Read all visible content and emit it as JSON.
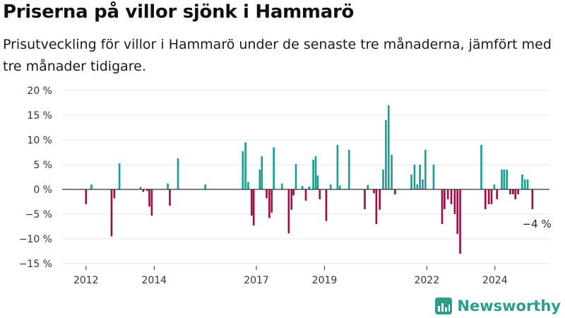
{
  "header": {
    "title": "Priserna på villor sjönk i Hammarö",
    "subtitle": "Prisutveckling för villor i Hammarö under de senaste tre månaderna, jämfört med tre månader tidigare."
  },
  "brand": {
    "name": "Newsworthy",
    "icon": "bar-chart-logo-icon",
    "color": "#2a9d8f"
  },
  "colors": {
    "positive": "#1a9e96",
    "negative": "#9b0f47"
  },
  "chart_data": {
    "type": "bar",
    "title": "Priserna på villor sjönk i Hammarö",
    "ylabel": "",
    "xlabel": "",
    "ylim": [
      -15,
      20
    ],
    "yticks": [
      20,
      15,
      10,
      5,
      0,
      -5,
      -10,
      -15
    ],
    "ytick_labels": [
      "20 %",
      "15 %",
      "10 %",
      "5 %",
      "0 %",
      "−5 %",
      "−10 %",
      "−15 %"
    ],
    "xlim": [
      2011.3,
      2025.6
    ],
    "xticks": [
      2012,
      2014,
      2017,
      2019,
      2022,
      2024
    ],
    "xtick_labels": [
      "2012",
      "2014",
      "2017",
      "2019",
      "2022",
      "2024"
    ],
    "grid": true,
    "bar_width_years": 0.055,
    "annotation": {
      "text": "−4 %",
      "x": 2024.7,
      "y": -4
    },
    "points": [
      {
        "x": 2012.0,
        "v": -3
      },
      {
        "x": 2012.16,
        "v": 1
      },
      {
        "x": 2012.75,
        "v": -9.5
      },
      {
        "x": 2012.83,
        "v": -1.8
      },
      {
        "x": 2012.98,
        "v": 5.3
      },
      {
        "x": 2013.6,
        "v": 0.5
      },
      {
        "x": 2013.68,
        "v": -0.5
      },
      {
        "x": 2013.8,
        "v": -0.3
      },
      {
        "x": 2013.86,
        "v": -3.5
      },
      {
        "x": 2013.93,
        "v": -5.3
      },
      {
        "x": 2014.4,
        "v": 1.2
      },
      {
        "x": 2014.46,
        "v": -3.3
      },
      {
        "x": 2014.7,
        "v": 6.3
      },
      {
        "x": 2015.5,
        "v": 1
      },
      {
        "x": 2016.6,
        "v": 7.7
      },
      {
        "x": 2016.68,
        "v": 9.5
      },
      {
        "x": 2016.76,
        "v": 1.5
      },
      {
        "x": 2016.86,
        "v": -5.3
      },
      {
        "x": 2016.92,
        "v": -7.3
      },
      {
        "x": 2017.1,
        "v": 4
      },
      {
        "x": 2017.16,
        "v": 6.7
      },
      {
        "x": 2017.3,
        "v": -1.8
      },
      {
        "x": 2017.38,
        "v": -5.8
      },
      {
        "x": 2017.45,
        "v": -4.7
      },
      {
        "x": 2017.51,
        "v": 8.5
      },
      {
        "x": 2017.75,
        "v": 1.2
      },
      {
        "x": 2017.95,
        "v": -8.9
      },
      {
        "x": 2018.03,
        "v": -4.1
      },
      {
        "x": 2018.09,
        "v": -1.2
      },
      {
        "x": 2018.16,
        "v": 5.1
      },
      {
        "x": 2018.35,
        "v": 0.7
      },
      {
        "x": 2018.45,
        "v": -2.3
      },
      {
        "x": 2018.55,
        "v": 0.6
      },
      {
        "x": 2018.67,
        "v": 6
      },
      {
        "x": 2018.74,
        "v": 6.7
      },
      {
        "x": 2018.8,
        "v": 2.8
      },
      {
        "x": 2018.86,
        "v": -2
      },
      {
        "x": 2019.05,
        "v": -6.4
      },
      {
        "x": 2019.18,
        "v": 1
      },
      {
        "x": 2019.38,
        "v": 9
      },
      {
        "x": 2019.45,
        "v": 0.8
      },
      {
        "x": 2019.72,
        "v": 8
      },
      {
        "x": 2020.18,
        "v": -4
      },
      {
        "x": 2020.27,
        "v": 0.9
      },
      {
        "x": 2020.45,
        "v": -0.8
      },
      {
        "x": 2020.52,
        "v": -7
      },
      {
        "x": 2020.62,
        "v": -4.1
      },
      {
        "x": 2020.72,
        "v": 4
      },
      {
        "x": 2020.8,
        "v": 14
      },
      {
        "x": 2020.88,
        "v": 17
      },
      {
        "x": 2020.97,
        "v": 7
      },
      {
        "x": 2021.07,
        "v": -1
      },
      {
        "x": 2021.55,
        "v": 3
      },
      {
        "x": 2021.64,
        "v": 5
      },
      {
        "x": 2021.72,
        "v": 1
      },
      {
        "x": 2021.8,
        "v": 5
      },
      {
        "x": 2021.88,
        "v": 2
      },
      {
        "x": 2021.96,
        "v": 8
      },
      {
        "x": 2022.2,
        "v": 5
      },
      {
        "x": 2022.45,
        "v": -7
      },
      {
        "x": 2022.52,
        "v": -4
      },
      {
        "x": 2022.62,
        "v": -2
      },
      {
        "x": 2022.72,
        "v": -3
      },
      {
        "x": 2022.82,
        "v": -5
      },
      {
        "x": 2022.9,
        "v": -9
      },
      {
        "x": 2022.98,
        "v": -13
      },
      {
        "x": 2023.6,
        "v": 9
      },
      {
        "x": 2023.72,
        "v": -4
      },
      {
        "x": 2023.82,
        "v": -3
      },
      {
        "x": 2023.9,
        "v": -3
      },
      {
        "x": 2023.98,
        "v": 1
      },
      {
        "x": 2024.06,
        "v": -2
      },
      {
        "x": 2024.2,
        "v": 4
      },
      {
        "x": 2024.27,
        "v": 4
      },
      {
        "x": 2024.35,
        "v": 4
      },
      {
        "x": 2024.45,
        "v": -1
      },
      {
        "x": 2024.53,
        "v": -1
      },
      {
        "x": 2024.6,
        "v": -2
      },
      {
        "x": 2024.68,
        "v": -1
      },
      {
        "x": 2024.8,
        "v": 3
      },
      {
        "x": 2024.88,
        "v": 2
      },
      {
        "x": 2024.96,
        "v": 2
      },
      {
        "x": 2025.1,
        "v": -4
      }
    ]
  }
}
